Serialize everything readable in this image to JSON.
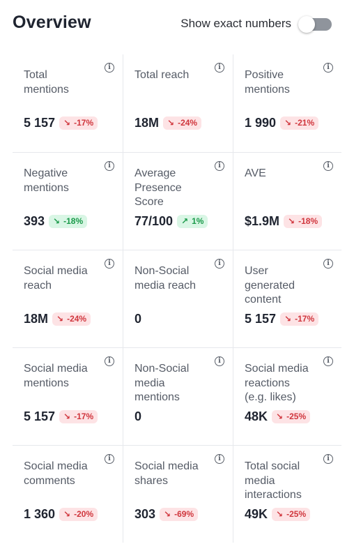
{
  "header": {
    "title": "Overview",
    "toggle_label": "Show exact numbers",
    "toggle_on": false
  },
  "colors": {
    "negative_bg": "#fde3e5",
    "negative_text": "#d0363d",
    "positive_bg": "#d9f6e5",
    "positive_text": "#1b9a4a"
  },
  "metrics": [
    {
      "label": "Total mentions",
      "value": "5 157",
      "change": "-17%",
      "trend": "down"
    },
    {
      "label": "Total reach",
      "value": "18M",
      "change": "-24%",
      "trend": "down"
    },
    {
      "label": "Positive mentions",
      "value": "1 990",
      "change": "-21%",
      "trend": "down"
    },
    {
      "label": "Negative mentions",
      "value": "393",
      "change": "-18%",
      "trend": "up"
    },
    {
      "label": "Average Presence Score",
      "value": "77/100",
      "change": "1%",
      "trend": "up"
    },
    {
      "label": "AVE",
      "value": "$1.9M",
      "change": "-18%",
      "trend": "down"
    },
    {
      "label": "Social media reach",
      "value": "18M",
      "change": "-24%",
      "trend": "down"
    },
    {
      "label": "Non-Social media reach",
      "value": "0",
      "change": "",
      "trend": "none"
    },
    {
      "label": "User generated content",
      "value": "5 157",
      "change": "-17%",
      "trend": "down"
    },
    {
      "label": "Social media mentions",
      "value": "5 157",
      "change": "-17%",
      "trend": "down"
    },
    {
      "label": "Non-Social media mentions",
      "value": "0",
      "change": "",
      "trend": "none"
    },
    {
      "label": "Social media reactions (e.g. likes)",
      "value": "48K",
      "change": "-25%",
      "trend": "down"
    },
    {
      "label": "Social media comments",
      "value": "1 360",
      "change": "-20%",
      "trend": "down"
    },
    {
      "label": "Social media shares",
      "value": "303",
      "change": "-69%",
      "trend": "down"
    },
    {
      "label": "Total social media interactions",
      "value": "49K",
      "change": "-25%",
      "trend": "down"
    }
  ]
}
